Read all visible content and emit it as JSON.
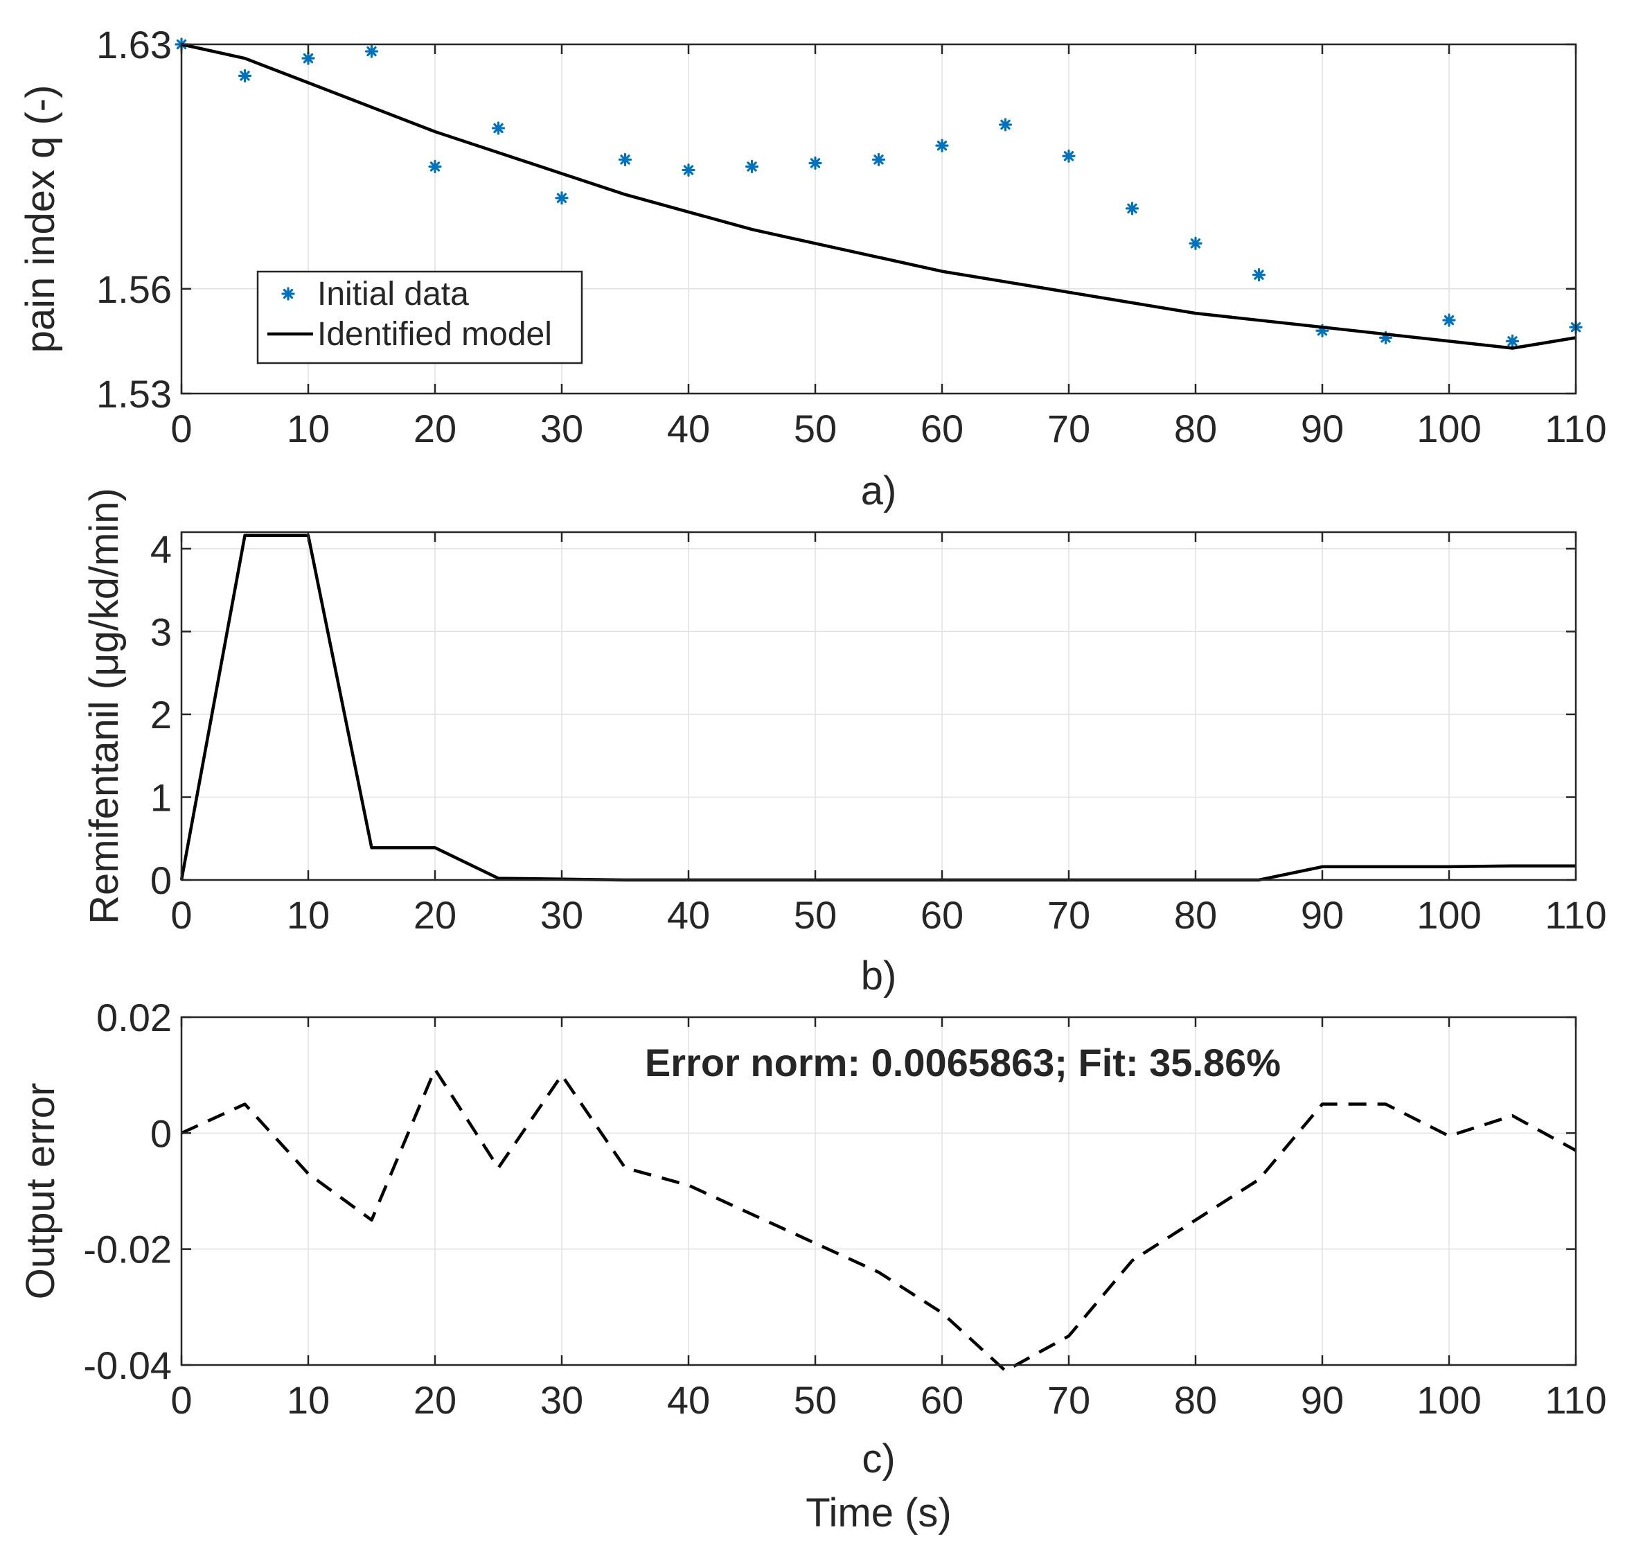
{
  "chart_data": [
    {
      "type": "line",
      "panel_label": "a)",
      "xlabel": "",
      "ylabel": "pain index q (-)",
      "xlim": [
        0,
        110
      ],
      "ylim": [
        1.53,
        1.63
      ],
      "xticks": [
        0,
        10,
        20,
        30,
        40,
        50,
        60,
        70,
        80,
        90,
        100,
        110
      ],
      "yticks": [
        1.53,
        1.56,
        1.63
      ],
      "grid": true,
      "legend": {
        "location": "lower-left",
        "entries": [
          "Initial data",
          "Identified model"
        ]
      },
      "series": [
        {
          "name": "Initial data",
          "style": "markers-asterisk",
          "color": "#0072BD",
          "x": [
            0,
            5,
            10,
            15,
            20,
            25,
            30,
            35,
            40,
            45,
            50,
            55,
            60,
            65,
            70,
            75,
            80,
            85,
            90,
            95,
            100,
            105,
            110
          ],
          "y": [
            1.63,
            1.621,
            1.626,
            1.628,
            1.595,
            1.606,
            1.586,
            1.597,
            1.594,
            1.595,
            1.596,
            1.597,
            1.601,
            1.607,
            1.598,
            1.583,
            1.573,
            1.564,
            1.548,
            1.546,
            1.551,
            1.545,
            1.549
          ]
        },
        {
          "name": "Identified model",
          "style": "solid",
          "color": "#000000",
          "x": [
            0,
            5,
            10,
            15,
            20,
            25,
            30,
            35,
            40,
            45,
            50,
            55,
            60,
            65,
            70,
            75,
            80,
            85,
            90,
            95,
            100,
            105,
            110
          ],
          "y": [
            1.63,
            1.626,
            1.619,
            1.612,
            1.605,
            1.599,
            1.593,
            1.587,
            1.582,
            1.577,
            1.573,
            1.569,
            1.565,
            1.562,
            1.559,
            1.556,
            1.553,
            1.551,
            1.549,
            1.547,
            1.545,
            1.543,
            1.546
          ]
        }
      ]
    },
    {
      "type": "line",
      "panel_label": "b)",
      "xlabel": "",
      "ylabel": "Remifentanil (μg/kd/min)",
      "xlim": [
        0,
        110
      ],
      "ylim": [
        0,
        4.2
      ],
      "xticks": [
        0,
        10,
        20,
        30,
        40,
        50,
        60,
        70,
        80,
        90,
        100,
        110
      ],
      "yticks": [
        0,
        1,
        2,
        3,
        4
      ],
      "grid": true,
      "series": [
        {
          "name": "Remifentanil",
          "style": "solid",
          "color": "#000000",
          "x": [
            0,
            5,
            10,
            15,
            20,
            25,
            30,
            35,
            40,
            45,
            50,
            55,
            60,
            65,
            70,
            75,
            80,
            85,
            90,
            95,
            100,
            105,
            110
          ],
          "y": [
            0,
            4.16,
            4.16,
            0.39,
            0.39,
            0.02,
            0.01,
            0,
            0,
            0,
            0,
            0,
            0,
            0,
            0,
            0,
            0,
            0,
            0.16,
            0.16,
            0.16,
            0.17,
            0.17
          ]
        }
      ]
    },
    {
      "type": "line",
      "panel_label": "c)",
      "xlabel": "Time (s)",
      "ylabel": "Output error",
      "xlim": [
        0,
        110
      ],
      "ylim": [
        -0.04,
        0.02
      ],
      "xticks": [
        0,
        10,
        20,
        30,
        40,
        50,
        60,
        70,
        80,
        90,
        100,
        110
      ],
      "yticks": [
        -0.04,
        -0.02,
        0,
        0.02
      ],
      "grid": true,
      "annotation": "Error norm: 0.0065863; Fit: 35.86%",
      "series": [
        {
          "name": "Output error",
          "style": "dashed",
          "color": "#000000",
          "x": [
            0,
            5,
            10,
            15,
            20,
            25,
            30,
            35,
            40,
            45,
            50,
            55,
            60,
            65,
            70,
            75,
            80,
            85,
            90,
            95,
            100,
            105,
            110
          ],
          "y": [
            0,
            0.005,
            -0.007,
            -0.015,
            0.011,
            -0.006,
            0.01,
            -0.006,
            -0.009,
            -0.014,
            -0.019,
            -0.024,
            -0.031,
            -0.041,
            -0.035,
            -0.022,
            -0.015,
            -0.008,
            0.005,
            0.005,
            -0.0005,
            0.003,
            -0.003
          ]
        }
      ]
    }
  ]
}
